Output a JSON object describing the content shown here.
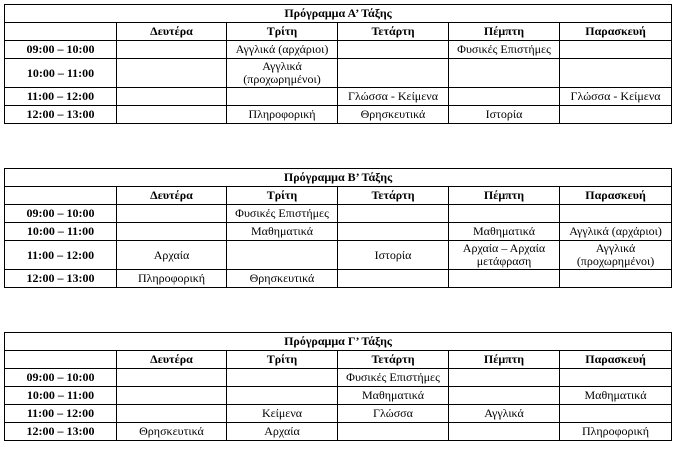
{
  "days": [
    "Δευτέρα",
    "Τρίτη",
    "Τετάρτη",
    "Πέμπτη",
    "Παρασκευή"
  ],
  "schedules": [
    {
      "title": "Πρόγραμμα Α’ Τάξης",
      "rows": [
        {
          "time": "09:00 – 10:00",
          "cells": [
            "",
            "Αγγλικά  (αρχάριοι)",
            "",
            "Φυσικές Επιστήμες",
            ""
          ]
        },
        {
          "time": "10:00 – 11:00",
          "cells": [
            "",
            "Αγγλικά\n(προχωρημένοι)",
            "",
            "",
            ""
          ]
        },
        {
          "time": "11:00 – 12:00",
          "cells": [
            "",
            "",
            "Γλώσσα - Κείμενα",
            "",
            "Γλώσσα - Κείμενα"
          ]
        },
        {
          "time": "12:00 – 13:00",
          "cells": [
            "",
            "Πληροφορική",
            "Θρησκευτικά",
            "Ιστορία",
            ""
          ]
        }
      ]
    },
    {
      "title": "Πρόγραμμα Β’ Τάξης",
      "rows": [
        {
          "time": "09:00 – 10:00",
          "cells": [
            "",
            "Φυσικές Επιστήμες",
            "",
            "",
            ""
          ]
        },
        {
          "time": "10:00 – 11:00",
          "cells": [
            "",
            "Μαθηματικά",
            "",
            "Μαθηματικά",
            "Αγγλικά (αρχάριοι)"
          ]
        },
        {
          "time": "11:00 – 12:00",
          "cells": [
            "Αρχαία",
            "",
            "Ιστορία",
            "Αρχαία – Αρχαία\nμετάφραση",
            "Αγγλικά\n(προχωρημένοι)"
          ]
        },
        {
          "time": "12:00 – 13:00",
          "cells": [
            "Πληροφορική",
            "Θρησκευτικά",
            "",
            "",
            ""
          ]
        }
      ]
    },
    {
      "title": "Πρόγραμμα Γ’ Τάξης",
      "rows": [
        {
          "time": "09:00 – 10:00",
          "cells": [
            "",
            "",
            "Φυσικές Επιστήμες",
            "",
            ""
          ]
        },
        {
          "time": "10:00 – 11:00",
          "cells": [
            "",
            "",
            "Μαθηματικά",
            "",
            "Μαθηματικά"
          ]
        },
        {
          "time": "11:00 – 12:00",
          "cells": [
            "",
            "Κείμενα",
            "Γλώσσα",
            "Αγγλικά",
            ""
          ]
        },
        {
          "time": "12:00 – 13:00",
          "cells": [
            "Θρησκευτικά",
            "Αρχαία",
            "",
            "",
            "Πληροφορική"
          ]
        }
      ]
    }
  ]
}
